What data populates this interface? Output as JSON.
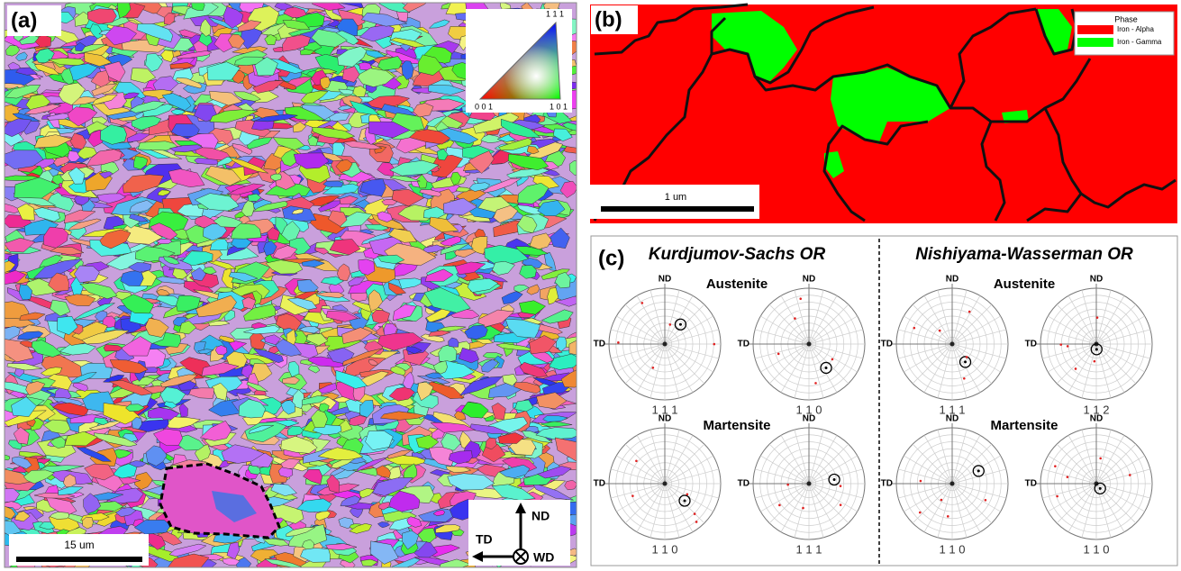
{
  "panel_a": {
    "label": "(a)",
    "scale_bar": "15 um",
    "ipf_key": {
      "top": "1 1 1",
      "bottom_left": "0 0 1",
      "bottom_right": "1 0 1"
    },
    "axes": {
      "up": "ND",
      "left": "TD",
      "out": "WD"
    }
  },
  "panel_b": {
    "label": "(b)",
    "scale_bar": "1 um",
    "legend": {
      "title": "Phase",
      "items": [
        {
          "name": "Iron - Alpha",
          "color": "#ff0000"
        },
        {
          "name": "Iron - Gamma",
          "color": "#00ff00"
        }
      ]
    }
  },
  "panel_c": {
    "label": "(c)",
    "axis_top": "ND",
    "axis_left": "TD",
    "columns": [
      {
        "title": "Kurdjumov-Sachs OR",
        "rows": [
          {
            "phase": "Austenite",
            "figures": [
              "1 1 1",
              "1 1 0"
            ]
          },
          {
            "phase": "Martensite",
            "figures": [
              "1 1 0",
              "1 1 1"
            ]
          }
        ]
      },
      {
        "title": "Nishiyama-Wasserman OR",
        "rows": [
          {
            "phase": "Austenite",
            "figures": [
              "1 1 1",
              "1 1 2"
            ]
          },
          {
            "phase": "Martensite",
            "figures": [
              "1 1 0",
              "1 1 0"
            ]
          }
        ]
      }
    ]
  }
}
